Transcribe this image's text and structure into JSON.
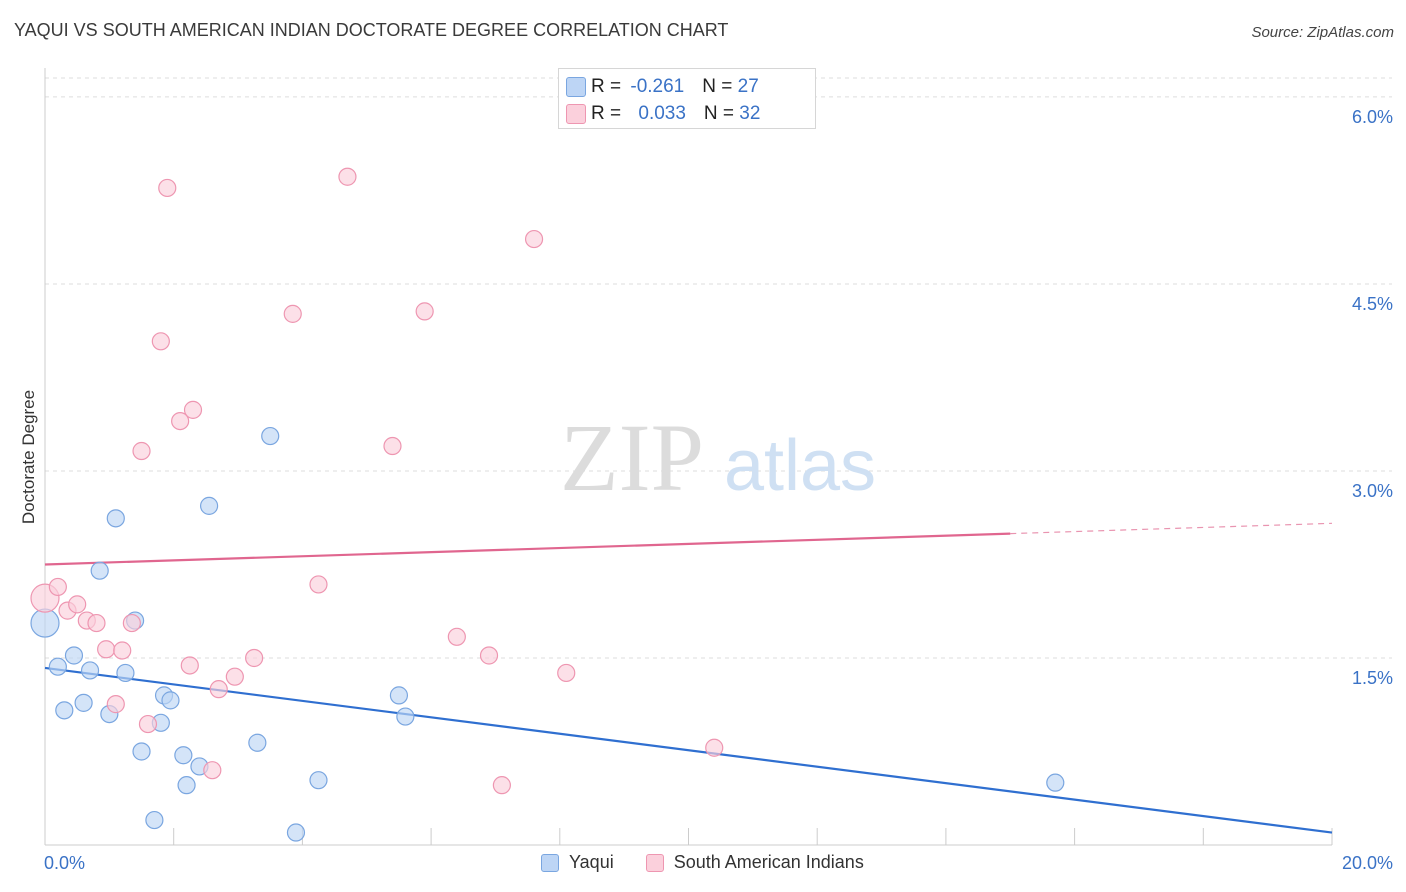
{
  "title": "YAQUI VS SOUTH AMERICAN INDIAN DOCTORATE DEGREE CORRELATION CHART",
  "source": "Source: ZipAtlas.com",
  "watermark": {
    "zip": "ZIP",
    "atlas": "atlas"
  },
  "stats": [
    {
      "r_label": "R = ",
      "r_value": "-0.261",
      "n_label": "N = ",
      "n_value": "27",
      "color": "#a9c8f0",
      "border": "#7aa6e0"
    },
    {
      "r_label": "R = ",
      "r_value": "0.033",
      "n_label": "N = ",
      "n_value": "32",
      "color": "#f8c3d2",
      "border": "#ee96b1"
    }
  ],
  "legend": [
    {
      "label": "Yaqui",
      "color": "#bdd5f5",
      "border": "#7aa6e0"
    },
    {
      "label": "South American Indians",
      "color": "#fbd0dc",
      "border": "#ee96b1"
    }
  ],
  "chart_data": {
    "type": "scatter",
    "title": "YAQUI VS SOUTH AMERICAN INDIAN DOCTORATE DEGREE CORRELATION CHART",
    "xlabel": "",
    "ylabel": "Doctorate Degree",
    "xlim": [
      0,
      20
    ],
    "ylim": [
      0,
      6.2
    ],
    "x_tick_labels": [
      "0.0%",
      "20.0%"
    ],
    "y_ticks": [
      1.5,
      3.0,
      4.5,
      6.0
    ],
    "y_tick_labels": [
      "1.5%",
      "3.0%",
      "4.5%",
      "6.0%"
    ],
    "series": [
      {
        "name": "Yaqui",
        "color": "#7aa6e0",
        "fill": "#bdd5f5",
        "trend_color": "#2f6fd0",
        "trend": {
          "x0": 0,
          "y0": 1.42,
          "x1": 20,
          "y1": 0.1,
          "solid_until": 20
        },
        "points": [
          {
            "x": 0.0,
            "y": 1.78,
            "big": true
          },
          {
            "x": 0.2,
            "y": 1.43
          },
          {
            "x": 0.3,
            "y": 1.08
          },
          {
            "x": 0.45,
            "y": 1.52
          },
          {
            "x": 0.6,
            "y": 1.14
          },
          {
            "x": 0.7,
            "y": 1.4
          },
          {
            "x": 0.85,
            "y": 2.2
          },
          {
            "x": 1.0,
            "y": 1.05
          },
          {
            "x": 1.1,
            "y": 2.62
          },
          {
            "x": 1.25,
            "y": 1.38
          },
          {
            "x": 1.4,
            "y": 1.8
          },
          {
            "x": 1.5,
            "y": 0.75
          },
          {
            "x": 1.7,
            "y": 0.2
          },
          {
            "x": 1.8,
            "y": 0.98
          },
          {
            "x": 1.85,
            "y": 1.2
          },
          {
            "x": 1.95,
            "y": 1.16
          },
          {
            "x": 2.15,
            "y": 0.72
          },
          {
            "x": 2.2,
            "y": 0.48
          },
          {
            "x": 2.4,
            "y": 0.63
          },
          {
            "x": 2.55,
            "y": 2.72
          },
          {
            "x": 3.3,
            "y": 0.82
          },
          {
            "x": 3.5,
            "y": 3.28
          },
          {
            "x": 3.9,
            "y": 0.1
          },
          {
            "x": 4.25,
            "y": 0.52
          },
          {
            "x": 5.5,
            "y": 1.2
          },
          {
            "x": 5.6,
            "y": 1.03
          },
          {
            "x": 15.7,
            "y": 0.5
          }
        ]
      },
      {
        "name": "South American Indians",
        "color": "#ee96b1",
        "fill": "#fbd0dc",
        "trend_color": "#e0668f",
        "trend": {
          "x0": 0,
          "y0": 2.25,
          "x1": 20,
          "y1": 2.58,
          "solid_until": 15
        },
        "points": [
          {
            "x": 0.0,
            "y": 1.98,
            "big": true
          },
          {
            "x": 0.2,
            "y": 2.07
          },
          {
            "x": 0.35,
            "y": 1.88
          },
          {
            "x": 0.5,
            "y": 1.93
          },
          {
            "x": 0.65,
            "y": 1.8
          },
          {
            "x": 0.8,
            "y": 1.78
          },
          {
            "x": 0.95,
            "y": 1.57
          },
          {
            "x": 1.1,
            "y": 1.13
          },
          {
            "x": 1.2,
            "y": 1.56
          },
          {
            "x": 1.35,
            "y": 1.78
          },
          {
            "x": 1.5,
            "y": 3.16
          },
          {
            "x": 1.6,
            "y": 0.97
          },
          {
            "x": 1.8,
            "y": 4.04
          },
          {
            "x": 1.9,
            "y": 5.27
          },
          {
            "x": 2.1,
            "y": 3.4
          },
          {
            "x": 2.25,
            "y": 1.44
          },
          {
            "x": 2.3,
            "y": 3.49
          },
          {
            "x": 2.6,
            "y": 0.6
          },
          {
            "x": 2.7,
            "y": 1.25
          },
          {
            "x": 2.95,
            "y": 1.35
          },
          {
            "x": 3.25,
            "y": 1.5
          },
          {
            "x": 3.85,
            "y": 4.26
          },
          {
            "x": 4.25,
            "y": 2.09
          },
          {
            "x": 4.7,
            "y": 5.36
          },
          {
            "x": 5.4,
            "y": 3.2
          },
          {
            "x": 5.9,
            "y": 4.28
          },
          {
            "x": 6.4,
            "y": 1.67
          },
          {
            "x": 6.9,
            "y": 1.52
          },
          {
            "x": 7.1,
            "y": 0.48
          },
          {
            "x": 7.6,
            "y": 4.86
          },
          {
            "x": 8.1,
            "y": 1.38
          },
          {
            "x": 10.4,
            "y": 0.78
          }
        ]
      }
    ]
  }
}
